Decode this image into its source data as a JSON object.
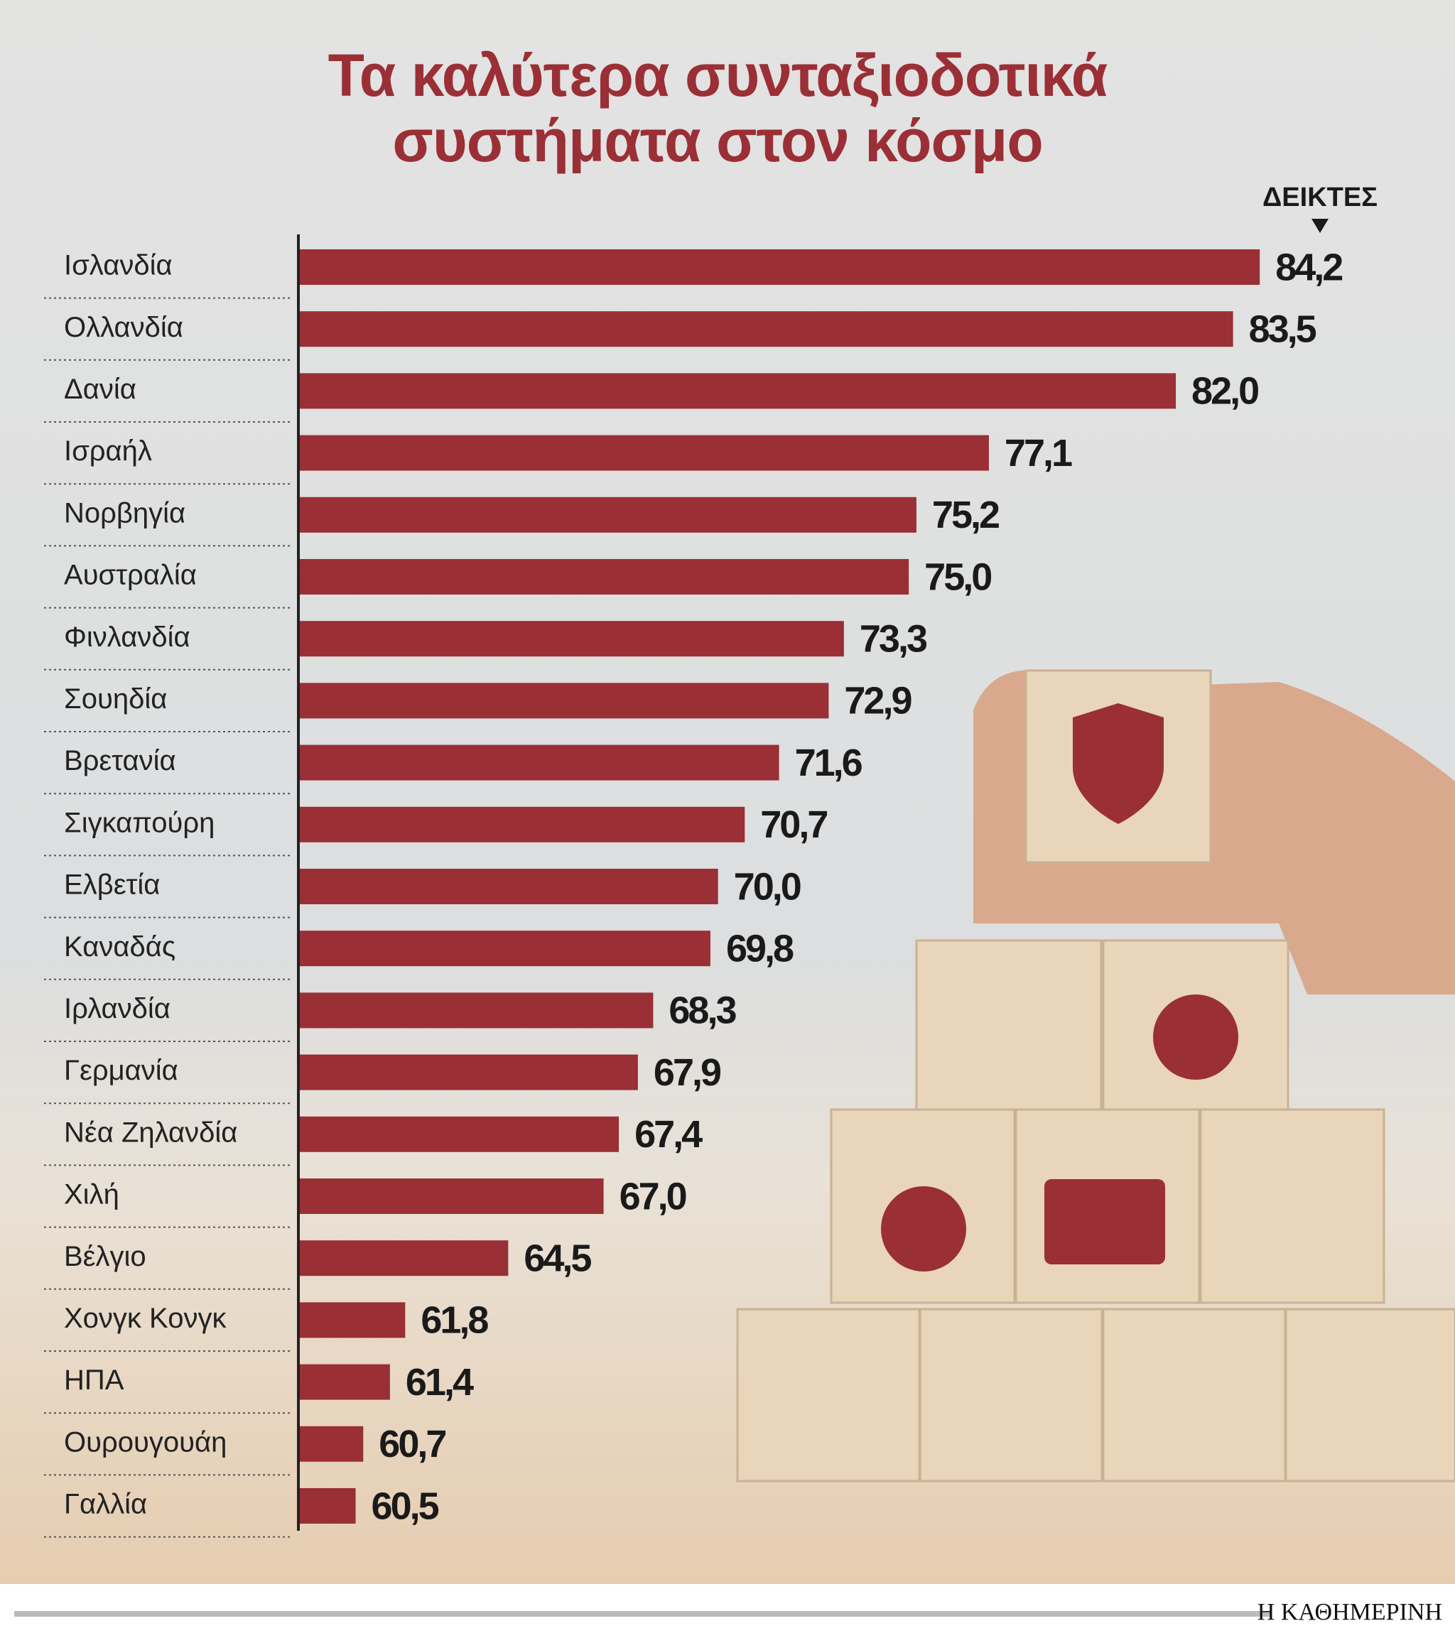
{
  "chart_data": {
    "type": "barh",
    "title": "Τα καλύτερα συνταξιοδοτικά συστήματα στον κόσμο",
    "value_axis_label": "ΔΕΙΚΤΕΣ",
    "source": "Η ΚΑΘΗΜΕΡΙΝΗ",
    "categories": [
      "Ισλανδία",
      "Ολλανδία",
      "Δανία",
      "Ισραήλ",
      "Νορβηγία",
      "Αυστραλία",
      "Φινλανδία",
      "Σουηδία",
      "Βρετανία",
      "Σιγκαπούρη",
      "Ελβετία",
      "Καναδάς",
      "Ιρλανδία",
      "Γερμανία",
      "Νέα Ζηλανδία",
      "Χιλή",
      "Βέλγιο",
      "Χονγκ Κονγκ",
      "ΗΠΑ",
      "Ουρουγουάη",
      "Γαλλία"
    ],
    "values": [
      84.2,
      83.5,
      82.0,
      77.1,
      75.2,
      75.0,
      73.3,
      72.9,
      71.6,
      70.7,
      70.0,
      69.8,
      68.3,
      67.9,
      67.4,
      67.0,
      64.5,
      61.8,
      61.4,
      60.7,
      60.5
    ],
    "value_labels": [
      "84,2",
      "83,5",
      "82,0",
      "77,1",
      "75,2",
      "75,0",
      "73,3",
      "72,9",
      "71,6",
      "70,7",
      "70,0",
      "69,8",
      "68,3",
      "67,9",
      "67,4",
      "67,0",
      "64,5",
      "61,8",
      "61,4",
      "60,7",
      "60,5"
    ],
    "color": "#9a2f35",
    "xlim": [
      59,
      85.5
    ]
  }
}
